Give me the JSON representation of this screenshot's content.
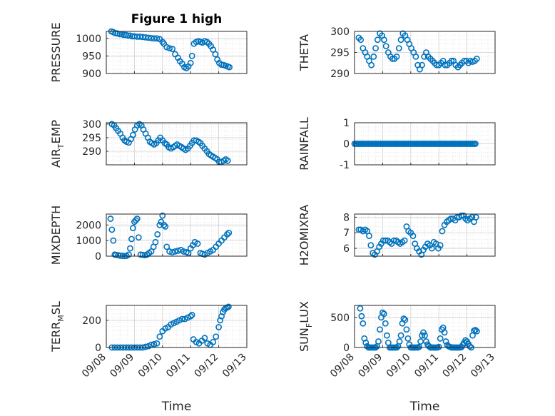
{
  "chart_data": [
    {
      "type": "scatter",
      "title": "Figure 1 high",
      "ylabel": "PRESSURE",
      "xlim": [
        0,
        5
      ],
      "ylim": [
        900,
        1020
      ],
      "yticks": [
        900,
        950,
        1000
      ],
      "x": [
        0.18,
        0.25,
        0.32,
        0.4,
        0.48,
        0.55,
        0.62,
        0.7,
        0.78,
        0.85,
        0.92,
        1.0,
        1.1,
        1.2,
        1.3,
        1.4,
        1.5,
        1.6,
        1.7,
        1.8,
        1.9,
        2.0,
        2.05,
        2.15,
        2.25,
        2.35,
        2.45,
        2.55,
        2.62,
        2.7,
        2.78,
        2.85,
        2.92,
        3.0,
        3.05,
        3.12,
        3.2,
        3.28,
        3.35,
        3.42,
        3.5,
        3.58,
        3.65,
        3.72,
        3.8,
        3.88,
        3.95,
        4.02,
        4.1,
        4.18,
        4.25,
        4.32,
        4.38
      ],
      "y": [
        1020,
        1018,
        1015,
        1014,
        1012,
        1012,
        1010,
        1010,
        1008,
        1008,
        1006,
        1006,
        1005,
        1005,
        1004,
        1003,
        1002,
        1001,
        1000,
        1000,
        998,
        990,
        985,
        975,
        972,
        970,
        955,
        945,
        935,
        928,
        918,
        915,
        920,
        930,
        950,
        985,
        990,
        992,
        990,
        988,
        992,
        990,
        985,
        978,
        968,
        955,
        940,
        930,
        925,
        924,
        922,
        920,
        918
      ]
    },
    {
      "type": "scatter",
      "ylabel": "THETA",
      "xlim": [
        0,
        5
      ],
      "ylim": [
        290,
        300
      ],
      "yticks": [
        290,
        295,
        300
      ],
      "x": [
        0.15,
        0.22,
        0.3,
        0.38,
        0.45,
        0.52,
        0.6,
        0.68,
        0.75,
        0.82,
        0.9,
        0.98,
        1.05,
        1.12,
        1.2,
        1.28,
        1.35,
        1.42,
        1.5,
        1.58,
        1.65,
        1.72,
        1.8,
        1.88,
        1.95,
        2.02,
        2.1,
        2.18,
        2.25,
        2.32,
        2.4,
        2.48,
        2.55,
        2.62,
        2.7,
        2.78,
        2.85,
        2.92,
        3.0,
        3.08,
        3.15,
        3.22,
        3.3,
        3.38,
        3.45,
        3.52,
        3.6,
        3.68,
        3.75,
        3.82,
        3.9,
        3.98,
        4.05,
        4.12,
        4.2,
        4.28,
        4.35
      ],
      "y": [
        298.5,
        298,
        296,
        295,
        294,
        293,
        292,
        294,
        296,
        298,
        299.5,
        299,
        298,
        296.5,
        295,
        294,
        293.5,
        293.5,
        294,
        296,
        298,
        299.5,
        299,
        298,
        297,
        296,
        295,
        294,
        292,
        291,
        292,
        294,
        295,
        294,
        293.5,
        293,
        292.5,
        292,
        292,
        292.5,
        293,
        292,
        292,
        292.5,
        293,
        293,
        292,
        291.5,
        292,
        292.5,
        293,
        293,
        292.5,
        293,
        292.8,
        293,
        293.5
      ]
    },
    {
      "type": "scatter",
      "ylabel": "AIR_T_EMP",
      "xlim": [
        0,
        5
      ],
      "ylim": [
        285,
        300.5
      ],
      "yticks": [
        290,
        295,
        300
      ],
      "x": [
        0.2,
        0.28,
        0.35,
        0.42,
        0.5,
        0.58,
        0.65,
        0.72,
        0.8,
        0.88,
        0.95,
        1.02,
        1.1,
        1.18,
        1.25,
        1.32,
        1.4,
        1.48,
        1.55,
        1.62,
        1.7,
        1.78,
        1.85,
        1.92,
        2.0,
        2.08,
        2.15,
        2.22,
        2.3,
        2.38,
        2.45,
        2.52,
        2.6,
        2.68,
        2.75,
        2.82,
        2.9,
        2.98,
        3.05,
        3.12,
        3.2,
        3.28,
        3.35,
        3.42,
        3.5,
        3.58,
        3.65,
        3.72,
        3.8,
        3.88,
        3.95,
        4.02,
        4.1,
        4.18,
        4.25,
        4.32
      ],
      "y": [
        300,
        299.5,
        298.5,
        297.5,
        296.5,
        295,
        294,
        293.5,
        293.2,
        294.5,
        296,
        298,
        299.5,
        300,
        299.5,
        298,
        296.5,
        295,
        293.5,
        293,
        292.5,
        293,
        294,
        295,
        294,
        293,
        292.5,
        291.5,
        291,
        291.5,
        292,
        292.5,
        292,
        291.5,
        291,
        290.5,
        291,
        292,
        293,
        294,
        294,
        293.5,
        293,
        292,
        291,
        290,
        289,
        288.5,
        288,
        287.5,
        287,
        286,
        286,
        286.5,
        287,
        286.5
      ]
    },
    {
      "type": "scatter",
      "ylabel": "RAINFALL",
      "xlim": [
        0,
        5
      ],
      "ylim": [
        -1,
        1
      ],
      "yticks": [
        -1,
        0,
        1
      ],
      "x": [
        0.0,
        0.05,
        0.1,
        0.15,
        0.2,
        0.25,
        0.3,
        0.35,
        0.4,
        0.45,
        0.5,
        0.55,
        0.6,
        0.65,
        0.7,
        0.75,
        0.8,
        0.85,
        0.9,
        0.95,
        1.0,
        1.05,
        1.1,
        1.15,
        1.2,
        1.25,
        1.3,
        1.35,
        1.4,
        1.45,
        1.5,
        1.55,
        1.6,
        1.65,
        1.7,
        1.75,
        1.8,
        1.85,
        1.9,
        1.95,
        2.0,
        2.05,
        2.1,
        2.15,
        2.2,
        2.25,
        2.3,
        2.35,
        2.4,
        2.45,
        2.5,
        2.55,
        2.6,
        2.65,
        2.7,
        2.75,
        2.8,
        2.85,
        2.9,
        2.95,
        3.0,
        3.05,
        3.1,
        3.15,
        3.2,
        3.25,
        3.3,
        3.35,
        3.4,
        3.45,
        3.5,
        3.55,
        3.6,
        3.65,
        3.7,
        3.75,
        3.8,
        3.85,
        3.9,
        3.95,
        4.0,
        4.05,
        4.1,
        4.15,
        4.2,
        4.25,
        4.3
      ],
      "y": [
        0,
        0,
        0,
        0,
        0,
        0,
        0,
        0,
        0,
        0,
        0,
        0,
        0,
        0,
        0,
        0,
        0,
        0,
        0,
        0,
        0,
        0,
        0,
        0,
        0,
        0,
        0,
        0,
        0,
        0,
        0,
        0,
        0,
        0,
        0,
        0,
        0,
        0,
        0,
        0,
        0,
        0,
        0,
        0,
        0,
        0,
        0,
        0,
        0,
        0,
        0,
        0,
        0,
        0,
        0,
        0,
        0,
        0,
        0,
        0,
        0,
        0,
        0,
        0,
        0,
        0,
        0,
        0,
        0,
        0,
        0,
        0,
        0,
        0,
        0,
        0,
        0,
        0,
        0,
        0,
        0,
        0,
        0,
        0,
        0,
        0,
        0
      ]
    },
    {
      "type": "scatter",
      "ylabel": "MIXDEPTH",
      "xlim": [
        0,
        5
      ],
      "ylim": [
        0,
        2700
      ],
      "yticks": [
        0,
        1000,
        2000
      ],
      "x": [
        0.15,
        0.2,
        0.25,
        0.3,
        0.35,
        0.42,
        0.5,
        0.58,
        0.65,
        0.72,
        0.8,
        0.85,
        0.9,
        0.95,
        1.0,
        1.05,
        1.1,
        1.15,
        1.22,
        1.3,
        1.38,
        1.45,
        1.52,
        1.6,
        1.68,
        1.75,
        1.82,
        1.9,
        1.95,
        2.0,
        2.05,
        2.1,
        2.15,
        2.25,
        2.35,
        2.45,
        2.55,
        2.65,
        2.75,
        2.85,
        2.92,
        3.0,
        3.08,
        3.15,
        3.25,
        3.35,
        3.42,
        3.5,
        3.6,
        3.7,
        3.8,
        3.9,
        4.0,
        4.1,
        4.2,
        4.3,
        4.36
      ],
      "y": [
        2400,
        1700,
        1000,
        100,
        80,
        60,
        30,
        20,
        10,
        20,
        100,
        500,
        1100,
        1800,
        2200,
        2300,
        2400,
        1200,
        100,
        80,
        60,
        100,
        200,
        300,
        600,
        900,
        1400,
        2000,
        2200,
        2600,
        2000,
        1900,
        600,
        300,
        250,
        300,
        350,
        400,
        300,
        250,
        200,
        500,
        700,
        900,
        800,
        200,
        150,
        100,
        200,
        300,
        400,
        600,
        800,
        1000,
        1200,
        1400,
        1500
      ]
    },
    {
      "type": "scatter",
      "ylabel": "H2OMIXRA",
      "xlim": [
        0,
        5
      ],
      "ylim": [
        5.5,
        8.2
      ],
      "yticks": [
        6,
        7,
        8
      ],
      "x": [
        0.15,
        0.22,
        0.3,
        0.38,
        0.45,
        0.52,
        0.58,
        0.65,
        0.72,
        0.8,
        0.88,
        0.95,
        1.02,
        1.1,
        1.18,
        1.25,
        1.32,
        1.4,
        1.48,
        1.55,
        1.62,
        1.7,
        1.78,
        1.85,
        1.92,
        2.0,
        2.08,
        2.15,
        2.22,
        2.3,
        2.38,
        2.45,
        2.52,
        2.6,
        2.68,
        2.75,
        2.82,
        2.9,
        2.98,
        3.05,
        3.12,
        3.2,
        3.28,
        3.35,
        3.42,
        3.5,
        3.58,
        3.65,
        3.72,
        3.8,
        3.88,
        3.95,
        4.02,
        4.1,
        4.18,
        4.25,
        4.32
      ],
      "y": [
        7.2,
        7.2,
        7.1,
        7.2,
        7.1,
        6.8,
        6.2,
        5.7,
        5.6,
        5.8,
        6.1,
        6.3,
        6.5,
        6.5,
        6.5,
        6.4,
        6.3,
        6.5,
        6.5,
        6.4,
        6.3,
        6.4,
        6.5,
        7.4,
        7.1,
        7.0,
        6.8,
        6.3,
        6.0,
        5.8,
        5.6,
        5.9,
        6.1,
        6.3,
        6.2,
        6.0,
        6.4,
        6.3,
        6.0,
        6.2,
        7.1,
        7.5,
        7.7,
        7.8,
        7.9,
        7.9,
        7.8,
        8.0,
        8.0,
        8.1,
        8.1,
        7.9,
        7.8,
        7.9,
        8.0,
        7.7,
        8.0
      ]
    },
    {
      "type": "scatter",
      "ylabel": "TERR_M_SL",
      "xlabel": "Time",
      "xlim": [
        0,
        5
      ],
      "ylim": [
        0,
        310
      ],
      "yticks": [
        0,
        200
      ],
      "xticks": [
        0,
        1,
        2,
        3,
        4,
        5
      ],
      "xticklabels": [
        "09/08",
        "09/09",
        "09/10",
        "09/11",
        "09/12",
        "09/13"
      ],
      "x": [
        0.2,
        0.3,
        0.4,
        0.5,
        0.6,
        0.7,
        0.8,
        0.9,
        1.0,
        1.1,
        1.2,
        1.3,
        1.4,
        1.5,
        1.6,
        1.7,
        1.8,
        1.9,
        2.0,
        2.1,
        2.2,
        2.3,
        2.4,
        2.5,
        2.6,
        2.7,
        2.8,
        2.9,
        3.0,
        3.05,
        3.1,
        3.2,
        3.3,
        3.4,
        3.5,
        3.6,
        3.7,
        3.8,
        3.9,
        4.0,
        4.05,
        4.1,
        4.15,
        4.2,
        4.25,
        4.3,
        4.35
      ],
      "y": [
        0,
        0,
        0,
        0,
        0,
        0,
        0,
        0,
        0,
        0,
        0,
        0,
        5,
        10,
        20,
        25,
        30,
        80,
        120,
        140,
        150,
        170,
        180,
        190,
        200,
        210,
        210,
        220,
        230,
        240,
        60,
        40,
        30,
        50,
        70,
        30,
        20,
        40,
        80,
        150,
        200,
        230,
        260,
        280,
        290,
        295,
        300
      ]
    },
    {
      "type": "scatter",
      "ylabel": "SUN_F_LUX",
      "xlabel": "Time",
      "xlim": [
        0,
        5
      ],
      "ylim": [
        0,
        700
      ],
      "yticks": [
        0,
        500
      ],
      "xticks": [
        0,
        1,
        2,
        3,
        4,
        5
      ],
      "xticklabels": [
        "09/08",
        "09/09",
        "09/10",
        "09/11",
        "09/12",
        "09/13"
      ],
      "x": [
        0.2,
        0.25,
        0.3,
        0.35,
        0.4,
        0.45,
        0.5,
        0.55,
        0.6,
        0.65,
        0.7,
        0.75,
        0.8,
        0.85,
        0.9,
        0.95,
        1.0,
        1.05,
        1.1,
        1.15,
        1.2,
        1.25,
        1.3,
        1.35,
        1.4,
        1.45,
        1.5,
        1.55,
        1.6,
        1.65,
        1.7,
        1.75,
        1.8,
        1.85,
        1.9,
        1.95,
        2.0,
        2.05,
        2.1,
        2.15,
        2.2,
        2.25,
        2.3,
        2.35,
        2.4,
        2.45,
        2.5,
        2.55,
        2.6,
        2.65,
        2.7,
        2.75,
        2.8,
        2.85,
        2.9,
        2.95,
        3.0,
        3.05,
        3.1,
        3.15,
        3.2,
        3.25,
        3.3,
        3.35,
        3.4,
        3.45,
        3.5,
        3.55,
        3.6,
        3.65,
        3.7,
        3.75,
        3.8,
        3.85,
        3.9,
        3.95,
        4.0,
        4.05,
        4.1,
        4.15,
        4.2,
        4.25,
        4.3,
        4.35
      ],
      "y": [
        650,
        520,
        400,
        150,
        80,
        20,
        0,
        0,
        0,
        0,
        0,
        0,
        20,
        100,
        300,
        500,
        580,
        560,
        400,
        200,
        80,
        0,
        0,
        0,
        0,
        0,
        0,
        20,
        100,
        200,
        400,
        480,
        460,
        300,
        150,
        50,
        0,
        0,
        0,
        0,
        0,
        0,
        10,
        100,
        200,
        250,
        200,
        100,
        50,
        20,
        0,
        0,
        0,
        0,
        0,
        0,
        10,
        150,
        300,
        330,
        250,
        100,
        40,
        20,
        10,
        0,
        0,
        0,
        0,
        0,
        0,
        0,
        5,
        40,
        80,
        120,
        100,
        60,
        20,
        0,
        200,
        280,
        290,
        270
      ]
    }
  ]
}
